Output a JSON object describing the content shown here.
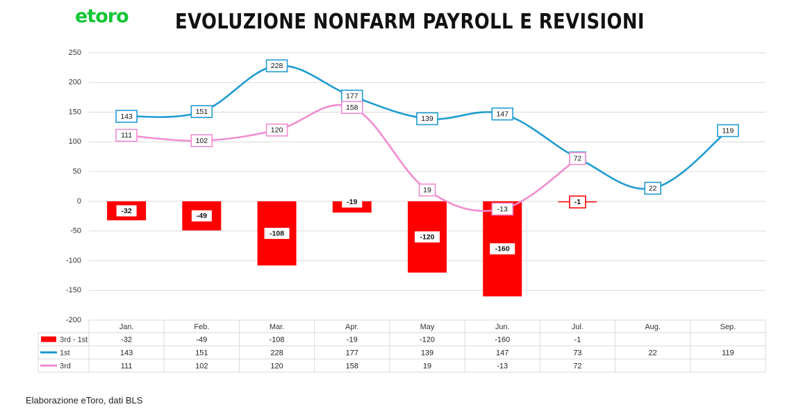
{
  "branding": {
    "logo_text": "etoro",
    "logo_color": "#13c636"
  },
  "title": "EVOLUZIONE NONFARM PAYROLL E REVISIONI",
  "source_note": "Elaborazione eToro, dati BLS",
  "chart_data": {
    "type": "bar+line",
    "title": "EVOLUZIONE NONFARM PAYROLL E REVISIONI",
    "categories": [
      "Jan.",
      "Feb.",
      "Mar.",
      "Apr.",
      "May",
      "Jun.",
      "Jul.",
      "Aug.",
      "Sep."
    ],
    "ylim": [
      -200,
      250
    ],
    "yticks": [
      250,
      200,
      150,
      100,
      50,
      0,
      -50,
      -100,
      -150,
      -200
    ],
    "grid": true,
    "data_table": true,
    "series": [
      {
        "name": "3rd - 1st",
        "type": "bar",
        "color": "#ff0000",
        "values": [
          -32,
          -49,
          -108,
          -19,
          -120,
          -160,
          -1,
          null,
          null
        ]
      },
      {
        "name": "1st",
        "type": "line",
        "color": "#1f9bd1",
        "values": [
          143,
          151,
          228,
          177,
          139,
          147,
          73,
          22,
          119
        ]
      },
      {
        "name": "3rd",
        "type": "line",
        "color": "#f08cd0",
        "values": [
          111,
          102,
          120,
          158,
          19,
          -13,
          72,
          null,
          null
        ]
      }
    ]
  }
}
